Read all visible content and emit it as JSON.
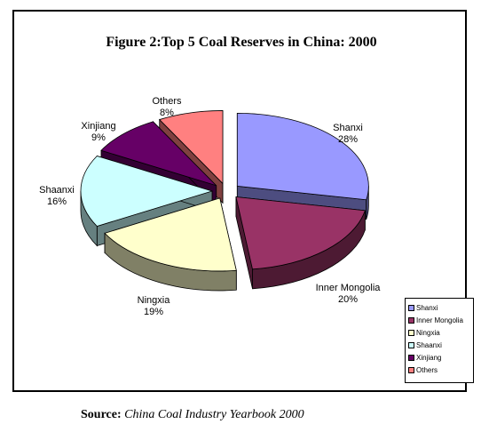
{
  "chart_data": {
    "type": "pie",
    "title": "Figure 2:Top 5 Coal Reserves in China: 2000",
    "categories": [
      "Shanxi",
      "Inner Mongolia",
      "Ningxia",
      "Shaanxi",
      "Xinjiang",
      "Others"
    ],
    "values": [
      28,
      20,
      19,
      16,
      9,
      8
    ],
    "value_labels": [
      "28%",
      "20%",
      "19%",
      "16%",
      "9%",
      "8%"
    ],
    "colors": [
      "#9999ff",
      "#993366",
      "#ffffcc",
      "#ccffff",
      "#660066",
      "#ff8080"
    ],
    "side_colors": [
      "#4d4d80",
      "#4d1a33",
      "#808066",
      "#668080",
      "#330033",
      "#804040"
    ],
    "legend_position": "bottom-right",
    "style": "3d exploded"
  },
  "source": {
    "label": "Source:",
    "text": "China Coal Industry Yearbook 2000"
  }
}
